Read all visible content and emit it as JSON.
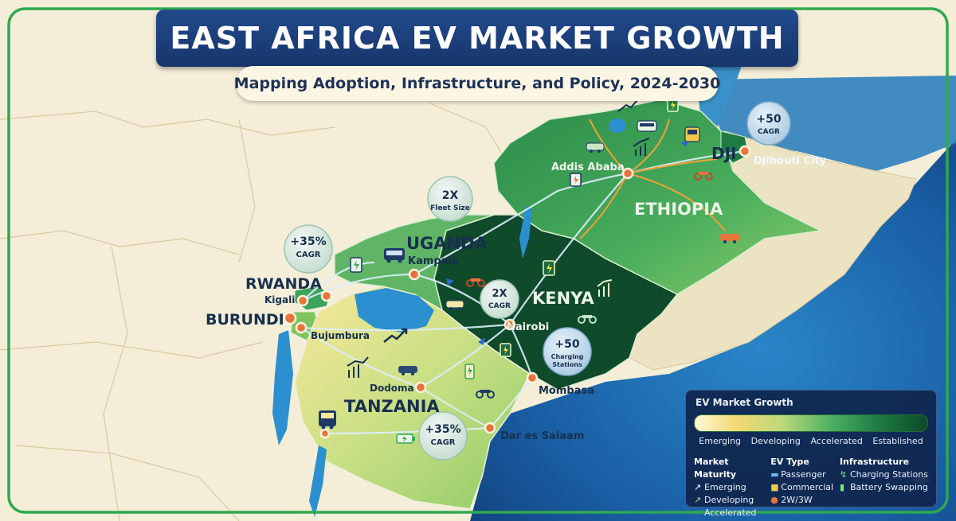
{
  "title": "EAST AFRICA EV MARKET GROWTH",
  "subtitle": "Mapping Adoption, Infrastructure, and Policy, 2024-2030",
  "countries": {
    "ethiopia": "ETHIOPIA",
    "djibouti": "DJI",
    "uganda": "UGANDA",
    "kenya": "KENYA",
    "rwanda": "RWANDA",
    "burundi": "BURUNDI",
    "tanzania": "TANZANIA"
  },
  "cities": {
    "addis_ababa": "Addis Ababa",
    "djibouti_city": "Djibouti City",
    "kampala": "Kampala",
    "kigali": "Kigali",
    "bujumbura": "Bujumbura",
    "nairobi": "Nairobi",
    "mombasa": "Mombasa",
    "dodoma": "Dodoma",
    "dar_es_salaam": "Dar es Salaam"
  },
  "badges": {
    "rwanda": {
      "value": "+35%",
      "label": "CAGR"
    },
    "uganda": {
      "value": "2X",
      "label": "Fleet Size"
    },
    "kenya": {
      "value": "2X",
      "label": "CAGR"
    },
    "kenya_charging": {
      "value": "+50",
      "label": "Charging Stations"
    },
    "djibouti": {
      "value": "+50",
      "label": "CAGR"
    },
    "tanzania": {
      "value": "+35%",
      "label": "CAGR"
    }
  },
  "legend": {
    "title": "EV Market Growth",
    "scale": [
      "Emerging",
      "Developing",
      "Accelerated",
      "Established"
    ],
    "maturity": {
      "heading": "Market Maturity",
      "items": [
        "Emerging",
        "Developing",
        "Accelerated"
      ]
    },
    "ev_type": {
      "heading": "EV Type",
      "items": [
        "Passenger",
        "Commercial",
        "2W/3W"
      ]
    },
    "infrastructure": {
      "heading": "Infrastructure",
      "items": [
        "Charging Stations",
        "Battery Swapping"
      ]
    }
  },
  "colors": {
    "title_bg": "#1d4080",
    "frame": "#2fa84f",
    "sea": "#1c5fa8",
    "emerging": "#f3da7a",
    "developing": "#9fd16a",
    "accelerated": "#3ea35a",
    "established": "#0e4a2a",
    "city_marker": "#e9733a",
    "route": "#dbeeff"
  },
  "icons": [
    "bus-icon",
    "car-icon",
    "motorcycle-icon",
    "charging-station-icon",
    "battery-icon",
    "growth-chart-icon",
    "trend-arrow-icon",
    "sparkle-icon"
  ]
}
